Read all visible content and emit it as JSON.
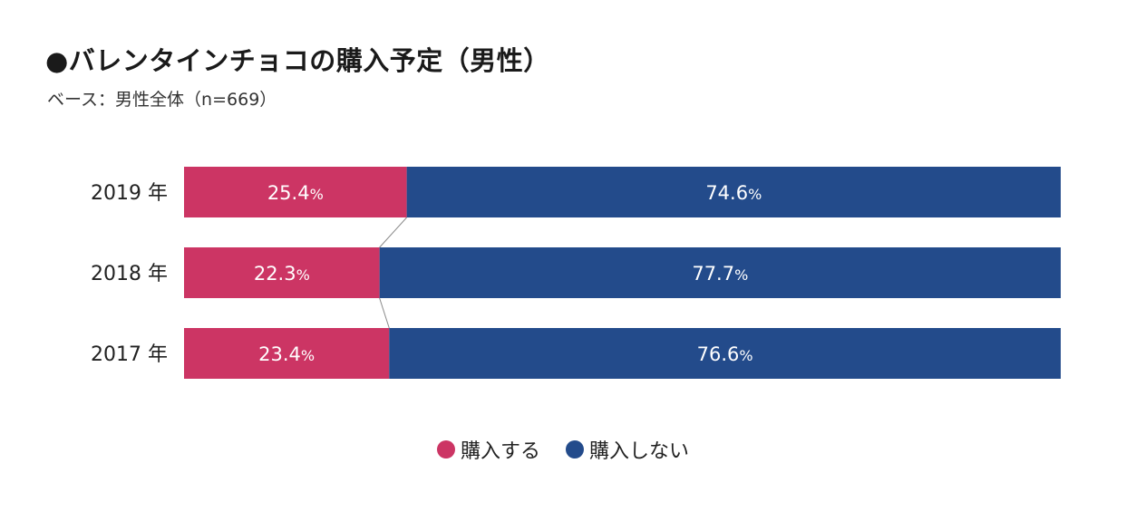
{
  "title": "●バレンタインチョコの購入予定（男性）",
  "subtitle": "ベース：男性全体（n=669）",
  "colors": {
    "buy": "#cc3564",
    "not_buy": "#234b8b",
    "connector": "#888888"
  },
  "chart_data": {
    "type": "bar",
    "orientation": "horizontal",
    "stacked": true,
    "normalized_percent": true,
    "categories": [
      "2019 年",
      "2018 年",
      "2017 年"
    ],
    "series": [
      {
        "name": "購入する",
        "values": [
          25.4,
          22.3,
          23.4
        ]
      },
      {
        "name": "購入しない",
        "values": [
          74.6,
          77.7,
          76.6
        ]
      }
    ],
    "value_suffix": "%",
    "xlim": [
      0,
      100
    ],
    "grid": false,
    "legend": {
      "placement": "bottom-center",
      "entries": [
        "購入する",
        "購入しない"
      ]
    }
  }
}
